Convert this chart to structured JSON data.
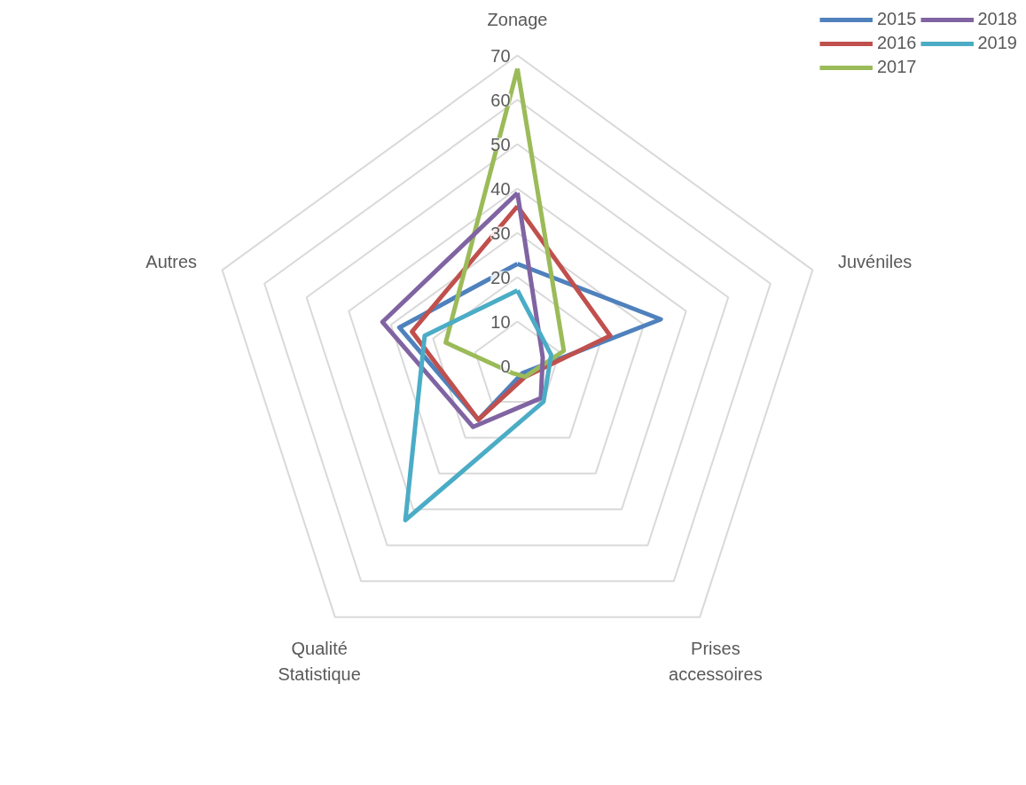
{
  "chart_data": {
    "type": "radar",
    "categories": [
      "Zonage",
      "Juvéniles",
      "Prises\naccessoires",
      "Qualité\nStatistique",
      "Autres"
    ],
    "ylim": [
      0,
      70
    ],
    "yticks": [
      0,
      10,
      20,
      30,
      40,
      50,
      60,
      70
    ],
    "grid": true,
    "legend": "top right",
    "series": [
      {
        "name": "2015",
        "color": "#4f81bd",
        "values": [
          23,
          34,
          2,
          15,
          28
        ]
      },
      {
        "name": "2016",
        "color": "#c0504d",
        "values": [
          36,
          22,
          3,
          15,
          25
        ]
      },
      {
        "name": "2017",
        "color": "#9bbb59",
        "values": [
          67,
          11,
          3,
          2,
          17
        ]
      },
      {
        "name": "2018",
        "color": "#8064a2",
        "values": [
          39,
          6,
          9,
          17,
          32
        ]
      },
      {
        "name": "2019",
        "color": "#4bacc6",
        "values": [
          17,
          8,
          10,
          43,
          22
        ]
      }
    ]
  }
}
